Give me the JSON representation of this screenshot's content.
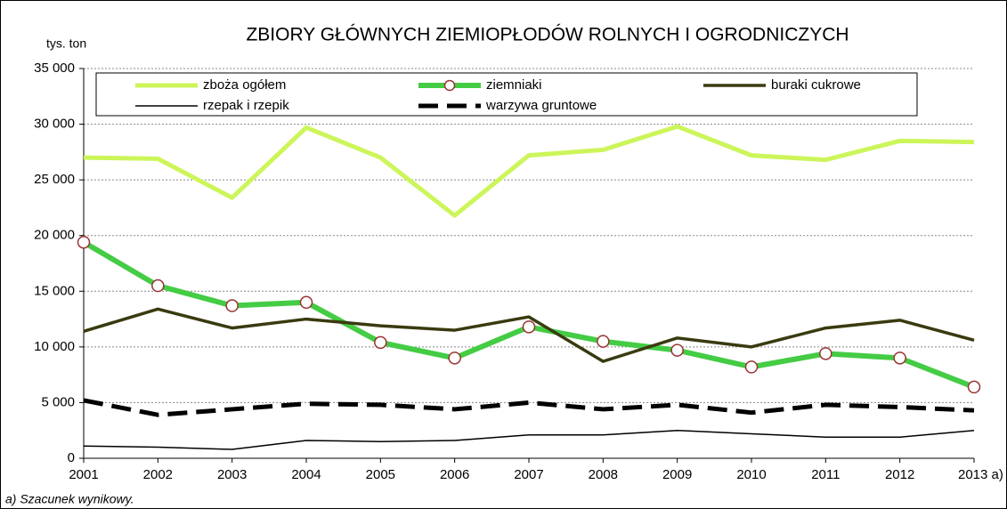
{
  "chart_data": {
    "type": "line",
    "title": "ZBIORY GŁÓWNYCH ZIEMIOPŁODÓW ROLNYCH I OGRODNICZYCH",
    "y_label": "tys. ton",
    "footnote": "a) Szacunek wynikowy.",
    "categories": [
      "2001",
      "2002",
      "2003",
      "2004",
      "2005",
      "2006",
      "2007",
      "2008",
      "2009",
      "2010",
      "2011",
      "2012",
      "2013 a)"
    ],
    "ylim": [
      0,
      35000
    ],
    "yticks": [
      0,
      {
        "value": 5000,
        "label": "5 000"
      },
      {
        "value": 10000,
        "label": "10 000"
      },
      {
        "value": 15000,
        "label": "15 000"
      },
      {
        "value": 20000,
        "label": "20 000"
      },
      {
        "value": 25000,
        "label": "25 000"
      },
      {
        "value": 30000,
        "label": "30 000"
      },
      {
        "value": 35000,
        "label": "35 000"
      }
    ],
    "grid": true,
    "series": [
      {
        "name": "zboża ogółem",
        "color": "#ccf55a",
        "line_width": 5,
        "values": [
          27000,
          26900,
          23400,
          29700,
          27000,
          21800,
          27200,
          27700,
          29800,
          27200,
          26800,
          28500,
          28400
        ]
      },
      {
        "name": "ziemniaki",
        "color": "#44cc44",
        "line_width": 6,
        "marker": "circle",
        "marker_color": "#993333",
        "values": [
          19400,
          15500,
          13700,
          14000,
          10400,
          9000,
          11800,
          10500,
          9700,
          8200,
          9400,
          9000,
          6400
        ]
      },
      {
        "name": "buraki cukrowe",
        "color": "#3a3a10",
        "line_width": 3.5,
        "values": [
          11400,
          13400,
          11700,
          12500,
          11900,
          11500,
          12700,
          8700,
          10800,
          10000,
          11700,
          12400,
          10600
        ]
      },
      {
        "name": "rzepak i rzepik",
        "color": "#000000",
        "line_width": 1.5,
        "values": [
          1100,
          1000,
          800,
          1600,
          1500,
          1600,
          2100,
          2100,
          2500,
          2200,
          1900,
          1900,
          2500
        ]
      },
      {
        "name": "warzywa gruntowe",
        "color": "#000000",
        "line_width": 5,
        "dash": "22 10",
        "values": [
          5200,
          3900,
          4400,
          4900,
          4800,
          4400,
          5000,
          4400,
          4800,
          4100,
          4800,
          4600,
          4300
        ]
      }
    ]
  }
}
